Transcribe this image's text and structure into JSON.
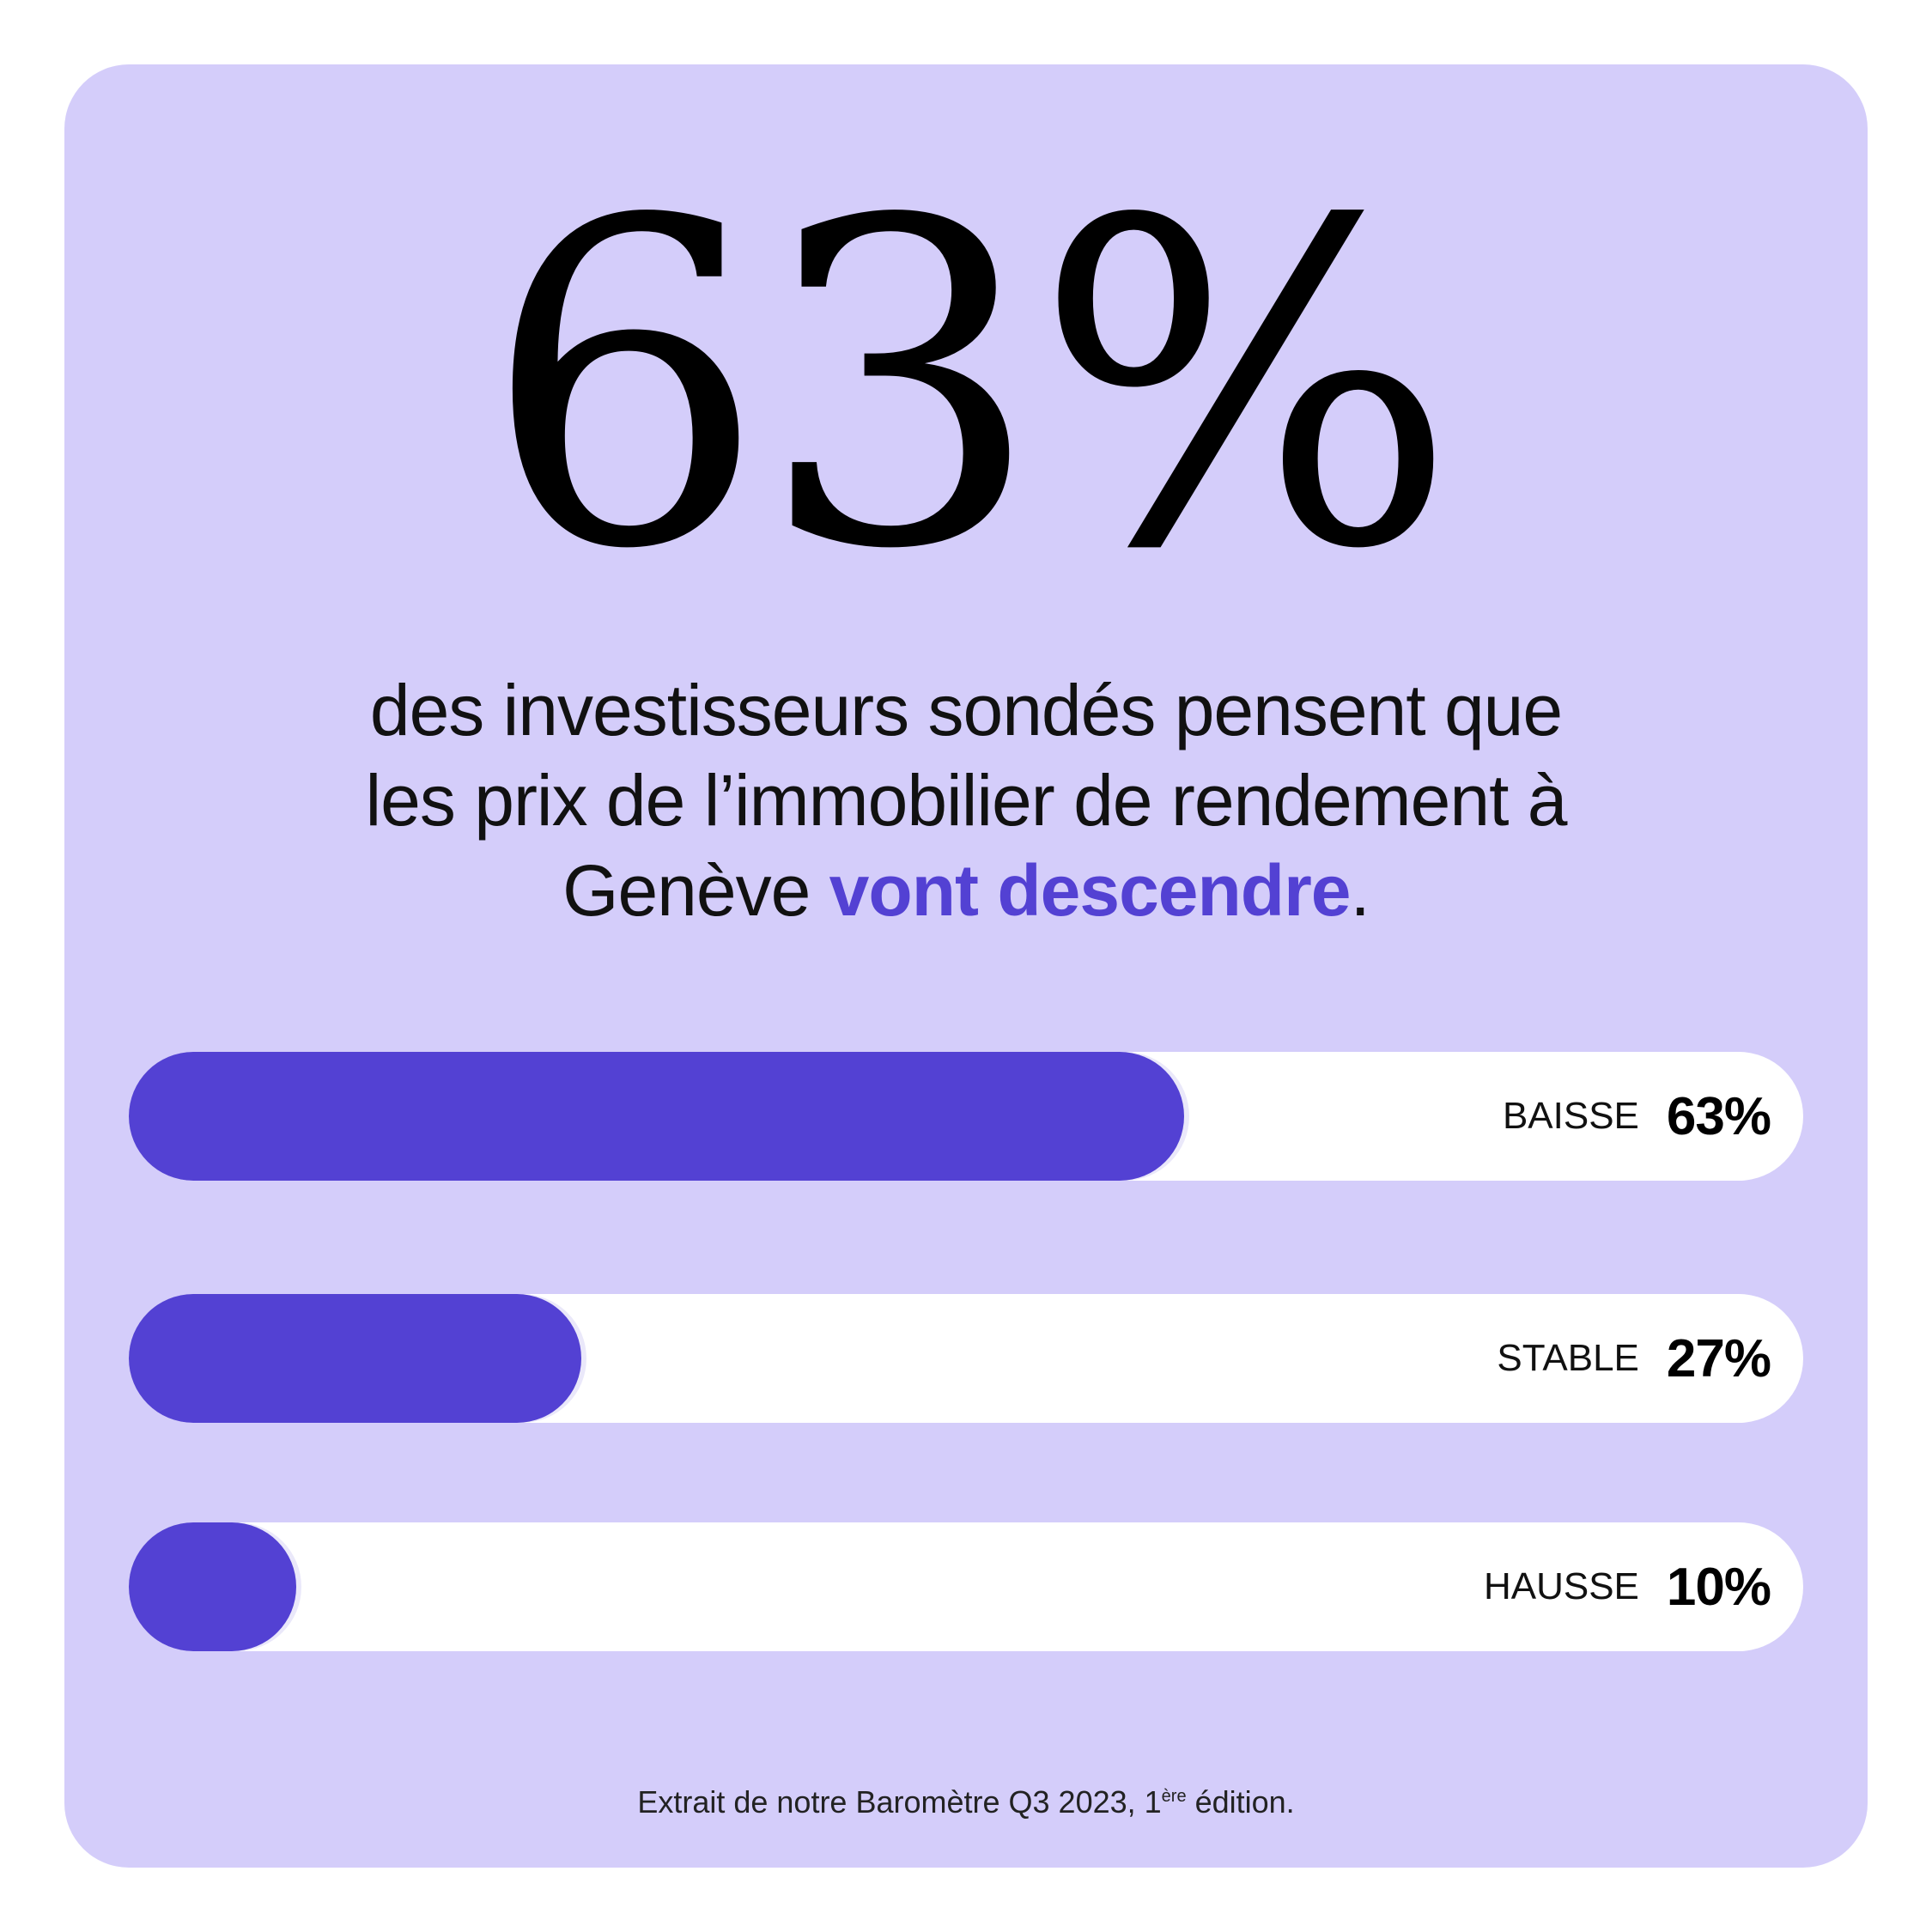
{
  "colors": {
    "card_background": "#d4cdfa",
    "accent": "#5341d3",
    "track": "#ffffff",
    "text": "#111111"
  },
  "headline_stat": "63%",
  "headline": {
    "line1": "des investisseurs sondés pensent que",
    "line2": "les prix de l’immobilier de rendement à",
    "line3_prefix": "Genève ",
    "line3_highlight": "vont descendre",
    "line3_suffix": "."
  },
  "chart_data": {
    "type": "bar",
    "orientation": "horizontal",
    "categories": [
      "BAISSE",
      "STABLE",
      "HAUSSE"
    ],
    "values": [
      63,
      27,
      10
    ],
    "value_labels": [
      "63%",
      "27%",
      "10%"
    ],
    "xlim": [
      0,
      100
    ],
    "grid": false
  },
  "footnote": {
    "text": "Extrait de notre Baromètre Q3 2023, 1",
    "superscript": "ère",
    "suffix": " édition."
  }
}
